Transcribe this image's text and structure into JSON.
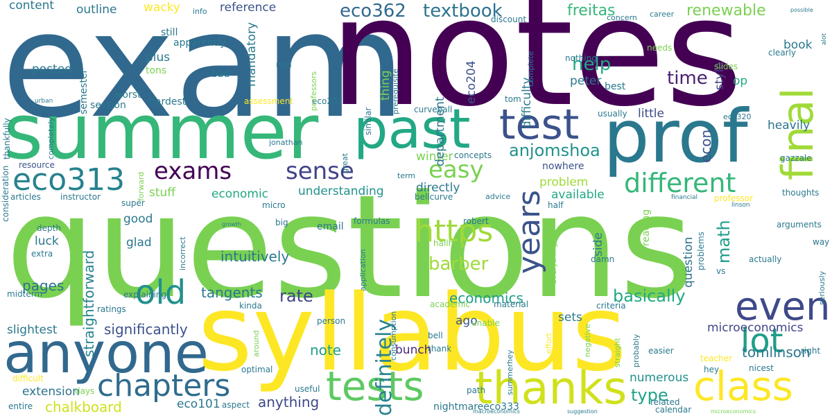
{
  "words": [
    {
      "t": "exam",
      "c": "#31688e"
    },
    {
      "t": "notes",
      "c": "#440154"
    },
    {
      "t": "questions",
      "c": "#7ad151"
    },
    {
      "t": "syllabus",
      "c": "#fde725"
    },
    {
      "t": "summer",
      "c": "#35b779"
    },
    {
      "t": "prof",
      "c": "#2a788e"
    },
    {
      "t": "past",
      "c": "#22a884"
    },
    {
      "t": "test",
      "c": "#3b528b"
    },
    {
      "t": "final",
      "c": "#a0da39"
    },
    {
      "t": "anyone",
      "c": "#31688e"
    },
    {
      "t": "thanks",
      "c": "#d0e11c"
    },
    {
      "t": "tests",
      "c": "#5ec962"
    },
    {
      "t": "class",
      "c": "#fde725"
    },
    {
      "t": "chapters",
      "c": "#2f6c8e"
    },
    {
      "t": "eco313",
      "c": "#26828e"
    },
    {
      "t": "exams",
      "c": "#440154"
    },
    {
      "t": "sense",
      "c": "#414487"
    },
    {
      "t": "easy",
      "c": "#7ad151"
    },
    {
      "t": "different",
      "c": "#35b779"
    },
    {
      "t": "years",
      "c": "#3b528b"
    },
    {
      "t": "even",
      "c": "#3e4989"
    },
    {
      "t": "lot",
      "c": "#1f9e89"
    },
    {
      "t": "old",
      "c": "#21918c"
    },
    {
      "t": "https",
      "c": "#a0da39"
    },
    {
      "t": "definitely",
      "c": "#26828e"
    },
    {
      "t": "eco362",
      "c": "#31688e"
    },
    {
      "t": "textbook",
      "c": "#2c728e"
    },
    {
      "t": "freitas",
      "c": "#35b779"
    },
    {
      "t": "renewable",
      "c": "#7ad151"
    },
    {
      "t": "help",
      "c": "#22a884"
    },
    {
      "t": "time",
      "c": "#481f70"
    },
    {
      "t": "anjomshoa",
      "c": "#21918c"
    },
    {
      "t": "barber",
      "c": "#a0da39"
    },
    {
      "t": "rate",
      "c": "#414487"
    },
    {
      "t": "basically",
      "c": "#22a884"
    },
    {
      "t": "economics",
      "c": "#1f9e89"
    },
    {
      "t": "microeconomics",
      "c": "#404688"
    },
    {
      "t": "tomlinson",
      "c": "#2a788e"
    },
    {
      "t": "pages",
      "c": "#2c728e"
    },
    {
      "t": "intuitively",
      "c": "#2a788e"
    },
    {
      "t": "tangents",
      "c": "#2a788e"
    },
    {
      "t": "straightforward",
      "c": "#26828e"
    },
    {
      "t": "significantly",
      "c": "#3b528b"
    },
    {
      "t": "chalkboard",
      "c": "#d0e11c"
    },
    {
      "t": "eco101",
      "c": "#2a788e"
    },
    {
      "t": "anything",
      "c": "#3e4989"
    },
    {
      "t": "type",
      "c": "#20a486"
    },
    {
      "t": "bunch",
      "c": "#482878"
    },
    {
      "t": "note",
      "c": "#1f9e89"
    },
    {
      "t": "ago",
      "c": "#3b528b"
    },
    {
      "t": "sets",
      "c": "#2a788e"
    },
    {
      "t": "numerous",
      "c": "#21918c"
    },
    {
      "t": "extension",
      "c": "#2c728e"
    },
    {
      "t": "math",
      "c": "#1f9e89"
    },
    {
      "t": "question",
      "c": "#2c728e"
    },
    {
      "t": "econ",
      "c": "#3b528b"
    },
    {
      "t": "heavily",
      "c": "#2c728e"
    },
    {
      "t": "outline",
      "c": "#2a788e"
    },
    {
      "t": "wacky",
      "c": "#fde725"
    },
    {
      "t": "reference",
      "c": "#3b528b"
    },
    {
      "t": "content",
      "c": "#2a788e"
    },
    {
      "t": "info",
      "c": "#2a788e"
    },
    {
      "t": "book",
      "c": "#2a788e"
    },
    {
      "t": "peter",
      "c": "#2a788e"
    },
    {
      "t": "op",
      "c": "#22a884"
    },
    {
      "t": "best",
      "c": "#2a788e"
    },
    {
      "t": "style",
      "c": "#414487"
    },
    {
      "t": "little",
      "c": "#3e4989"
    },
    {
      "t": "nowhere",
      "c": "#3b528b"
    },
    {
      "t": "winter",
      "c": "#7ad151"
    },
    {
      "t": "problem",
      "c": "#a0da39"
    },
    {
      "t": "available",
      "c": "#22a884"
    },
    {
      "t": "economic",
      "c": "#22a884"
    },
    {
      "t": "understanding",
      "c": "#21918c"
    },
    {
      "t": "directly",
      "c": "#2a788e"
    },
    {
      "t": "stuff",
      "c": "#7ad151"
    },
    {
      "t": "department",
      "c": "#2a788e"
    },
    {
      "t": "eco204",
      "c": "#3b528b"
    },
    {
      "t": "difficulty",
      "c": "#2a788e"
    },
    {
      "t": "thing",
      "c": "#7ad151"
    },
    {
      "t": "mandatory",
      "c": "#2a788e"
    },
    {
      "t": "semester",
      "c": "#2a788e"
    },
    {
      "t": "posted",
      "c": "#2a788e"
    },
    {
      "t": "plus",
      "c": "#2a788e"
    },
    {
      "t": "tons",
      "c": "#7ad151"
    },
    {
      "t": "still",
      "c": "#2a788e"
    },
    {
      "t": "apparently",
      "c": "#2a788e"
    },
    {
      "t": "bad",
      "c": "#2a788e"
    },
    {
      "t": "worst",
      "c": "#2a788e"
    },
    {
      "t": "session",
      "c": "#2a788e"
    },
    {
      "t": "hardest",
      "c": "#2a788e"
    },
    {
      "t": "assessment",
      "c": "#fde725"
    },
    {
      "t": "eco202",
      "c": "#2a788e"
    },
    {
      "t": "urban",
      "c": "#2a788e"
    },
    {
      "t": "thankfully",
      "c": "#2a788e"
    },
    {
      "t": "completely",
      "c": "#2a788e"
    },
    {
      "t": "consideration",
      "c": "#2a788e"
    },
    {
      "t": "resource",
      "c": "#3b528b"
    },
    {
      "t": "articles",
      "c": "#2a788e"
    },
    {
      "t": "instructor",
      "c": "#2a788e"
    },
    {
      "t": "super",
      "c": "#2a788e"
    },
    {
      "t": "good",
      "c": "#2a788e"
    },
    {
      "t": "glad",
      "c": "#2a788e"
    },
    {
      "t": "luck",
      "c": "#2a788e"
    },
    {
      "t": "depth",
      "c": "#2a788e"
    },
    {
      "t": "extra",
      "c": "#2a788e"
    },
    {
      "t": "midterm",
      "c": "#2a788e"
    },
    {
      "t": "explaining",
      "c": "#2a788e"
    },
    {
      "t": "ratings",
      "c": "#2a788e"
    },
    {
      "t": "kinda",
      "c": "#2a788e"
    },
    {
      "t": "slightest",
      "c": "#2a788e"
    },
    {
      "t": "optimal",
      "c": "#2a788e"
    },
    {
      "t": "difficult",
      "c": "#fde725"
    },
    {
      "t": "days",
      "c": "#7ad151"
    },
    {
      "t": "entire",
      "c": "#2a788e"
    },
    {
      "t": "aspect",
      "c": "#2a788e"
    },
    {
      "t": "useful",
      "c": "#2a788e"
    },
    {
      "t": "nightmareeco333",
      "c": "#2a788e"
    },
    {
      "t": "path",
      "c": "#2a788e"
    },
    {
      "t": "thank",
      "c": "#2a788e"
    },
    {
      "t": "bell",
      "c": "#2a788e"
    },
    {
      "t": "person",
      "c": "#2a788e"
    },
    {
      "t": "around",
      "c": "#7ad151"
    },
    {
      "t": "consumption",
      "c": "#2a788e"
    },
    {
      "t": "academic",
      "c": "#7ad151"
    },
    {
      "t": "material",
      "c": "#2a788e"
    },
    {
      "t": "unable",
      "c": "#7ad151"
    },
    {
      "t": "summerhey",
      "c": "#2a788e"
    },
    {
      "t": "effort",
      "c": "#fde725"
    },
    {
      "t": "negative",
      "c": "#7ad151"
    },
    {
      "t": "straight",
      "c": "#7ad151"
    },
    {
      "t": "probably",
      "c": "#2a788e"
    },
    {
      "t": "criteria",
      "c": "#2a788e"
    },
    {
      "t": "easier",
      "c": "#2a788e"
    },
    {
      "t": "nicest",
      "c": "#2a788e"
    },
    {
      "t": "teacher",
      "c": "#fde725"
    },
    {
      "t": "right",
      "c": "#2a788e"
    },
    {
      "t": "hey",
      "c": "#2a788e"
    },
    {
      "t": "related",
      "c": "#2a788e"
    },
    {
      "t": "vs",
      "c": "#2a788e"
    },
    {
      "t": "calendar",
      "c": "#2a788e"
    },
    {
      "t": "macroeconomics",
      "c": "#2a788e"
    },
    {
      "t": "suggestion",
      "c": "#2a788e"
    },
    {
      "t": "microeconomics",
      "c": "#7ad151"
    },
    {
      "t": "seriously",
      "c": "#2a788e"
    },
    {
      "t": "actually",
      "c": "#2a788e"
    },
    {
      "t": "way",
      "c": "#2a788e"
    },
    {
      "t": "arguments",
      "c": "#2a788e"
    },
    {
      "t": "linson",
      "c": "#2a788e"
    },
    {
      "t": "professor",
      "c": "#fde725"
    },
    {
      "t": "thoughts",
      "c": "#2a788e"
    },
    {
      "t": "financial",
      "c": "#2a788e"
    },
    {
      "t": "gazzale",
      "c": "#2a788e"
    },
    {
      "t": "eco320",
      "c": "#2a788e"
    },
    {
      "t": "usually",
      "c": "#2a788e"
    },
    {
      "t": "nothing",
      "c": "#2a788e"
    },
    {
      "t": "needs",
      "c": "#7ad151"
    },
    {
      "t": "slides",
      "c": "#7ad151"
    },
    {
      "t": "clearly",
      "c": "#2a788e"
    },
    {
      "t": "career",
      "c": "#2a788e"
    },
    {
      "t": "concern",
      "c": "#2a788e"
    },
    {
      "t": "discount",
      "c": "#2a788e"
    },
    {
      "t": "complete",
      "c": "#2a788e"
    },
    {
      "t": "prerequisite",
      "c": "#2a788e"
    },
    {
      "t": "similar",
      "c": "#2a788e"
    },
    {
      "t": "curveball",
      "c": "#2a788e"
    },
    {
      "t": "tom",
      "c": "#2a788e"
    },
    {
      "t": "professors",
      "c": "#7ad151"
    },
    {
      "t": "non",
      "c": "#2a788e"
    },
    {
      "t": "possible",
      "c": "#2a788e"
    },
    {
      "t": "alot",
      "c": "#2a788e"
    },
    {
      "t": "jonathan",
      "c": "#2a788e"
    },
    {
      "t": "great",
      "c": "#2a788e"
    },
    {
      "t": "concepts",
      "c": "#2a788e"
    },
    {
      "t": "term",
      "c": "#2a788e"
    },
    {
      "t": "forward",
      "c": "#7ad151"
    },
    {
      "t": "bellcurve",
      "c": "#2a788e"
    },
    {
      "t": "advice",
      "c": "#2a788e"
    },
    {
      "t": "half",
      "c": "#2a788e"
    },
    {
      "t": "micro",
      "c": "#2a788e"
    },
    {
      "t": "big",
      "c": "#2a788e"
    },
    {
      "t": "growth",
      "c": "#2a788e"
    },
    {
      "t": "incorrect",
      "c": "#2a788e"
    },
    {
      "t": "email",
      "c": "#2a788e"
    },
    {
      "t": "formulas",
      "c": "#2a788e"
    },
    {
      "t": "robert",
      "c": "#2a788e"
    },
    {
      "t": "hallhey",
      "c": "#7ad151"
    },
    {
      "t": "application",
      "c": "#2a788e"
    },
    {
      "t": "everything",
      "c": "#7ad151"
    },
    {
      "t": "damn",
      "c": "#2a788e"
    },
    {
      "t": "side",
      "c": "#2a788e"
    },
    {
      "t": "reading",
      "c": "#7ad151"
    },
    {
      "t": "problems",
      "c": "#2a788e"
    }
  ]
}
